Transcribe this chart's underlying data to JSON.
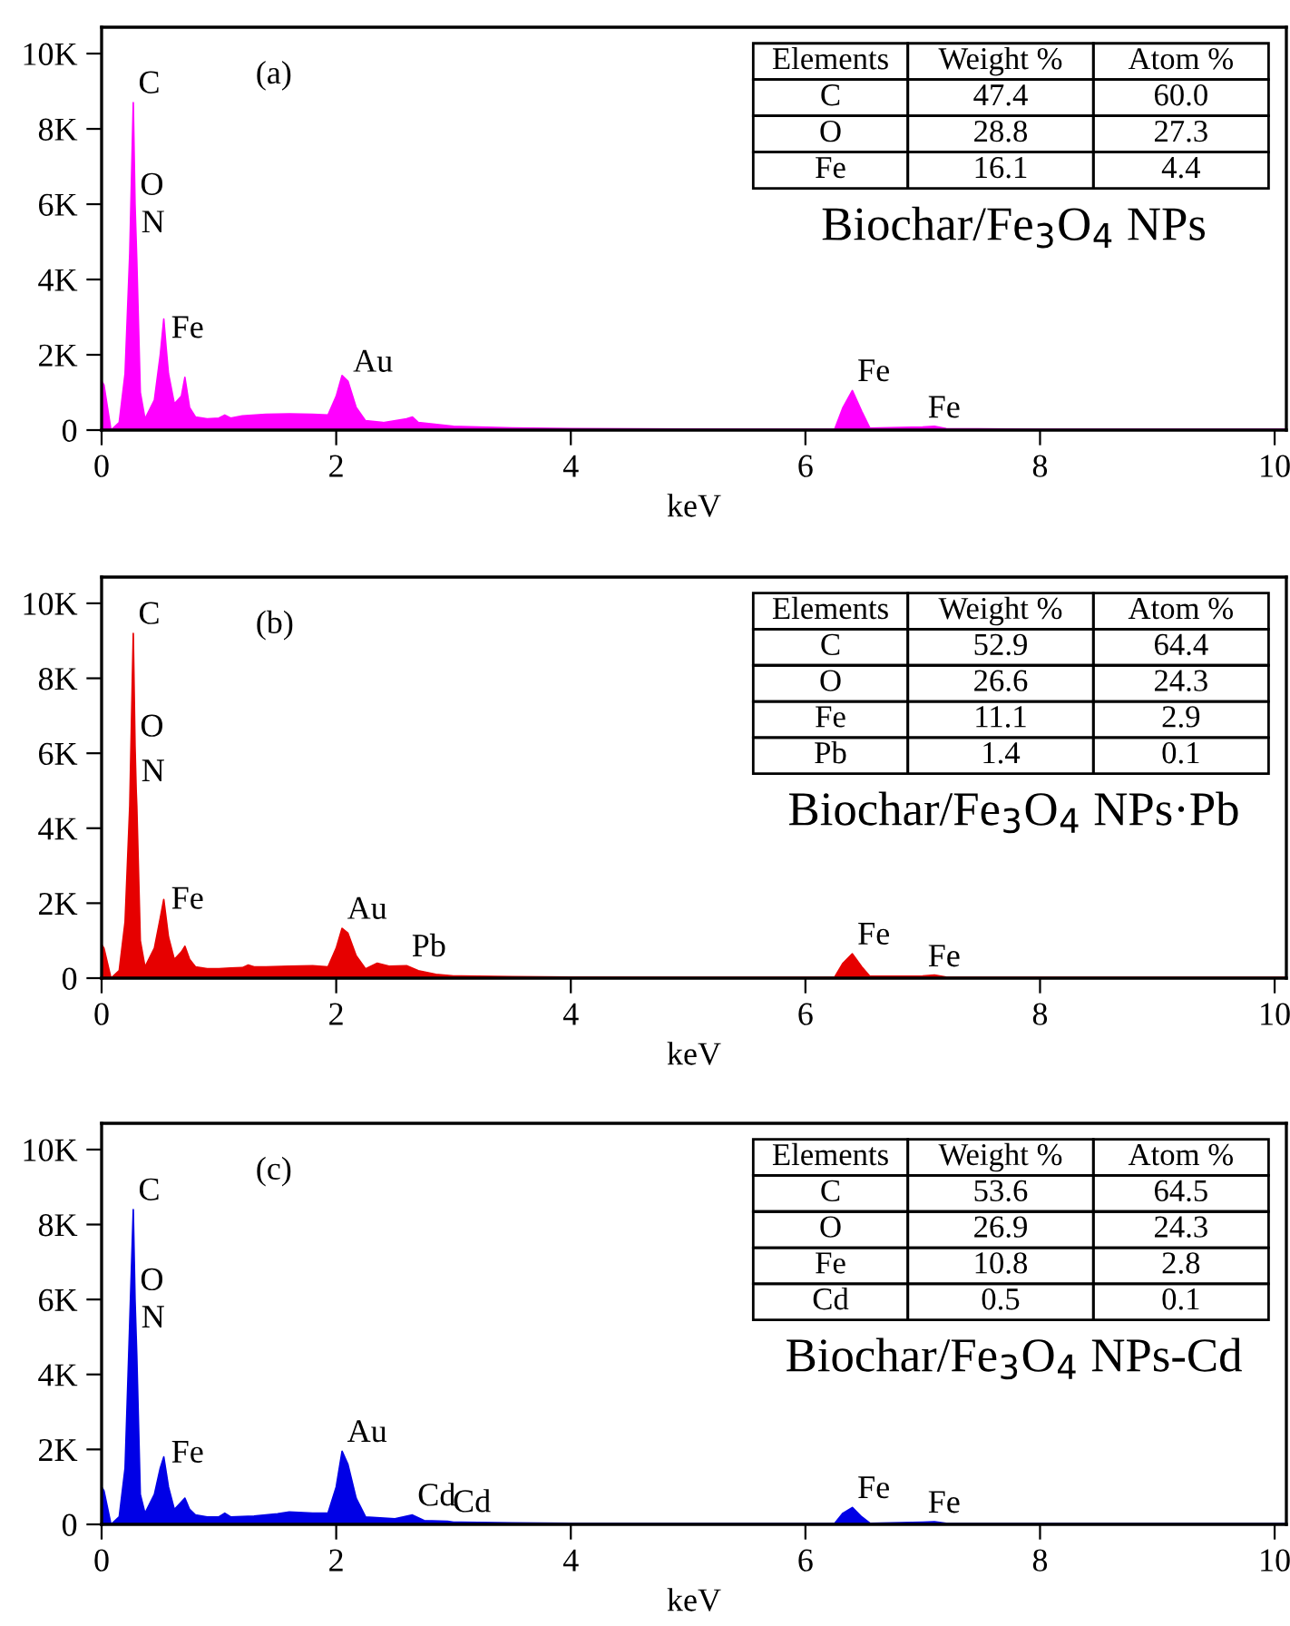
{
  "chart_data": [
    {
      "type": "area",
      "title": "Biochar/Fe$_{3}$O$_{4}$ NPs",
      "xlabel": "keV",
      "x": [
        0,
        0.02,
        0.08,
        0.15,
        0.2,
        0.24,
        0.27,
        0.285,
        0.295,
        0.3,
        0.33,
        0.37,
        0.45,
        0.5,
        0.53,
        0.55,
        0.57,
        0.62,
        0.68,
        0.71,
        0.75,
        0.8,
        0.9,
        1.0,
        1.05,
        1.1,
        1.2,
        1.4,
        1.6,
        1.8,
        1.93,
        2.0,
        2.05,
        2.1,
        2.17,
        2.25,
        2.4,
        2.6,
        2.65,
        2.7,
        3.0,
        3.5,
        4.0,
        5.0,
        6.0,
        6.25,
        6.32,
        6.4,
        6.48,
        6.55,
        7.0,
        7.1,
        7.2,
        8.0,
        10.0,
        10.1
      ],
      "series": [
        {
          "color": "#ff00ff",
          "values": [
            1300,
            1200,
            0,
            200,
            1500,
            4700,
            8700,
            6000,
            5000,
            4500,
            1000,
            300,
            800,
            2000,
            2950,
            2200,
            1500,
            700,
            900,
            1400,
            600,
            350,
            300,
            320,
            400,
            320,
            380,
            420,
            430,
            420,
            400,
            900,
            1450,
            1300,
            600,
            250,
            200,
            300,
            350,
            200,
            100,
            60,
            40,
            30,
            20,
            30,
            600,
            1050,
            500,
            50,
            80,
            100,
            40,
            20,
            20,
            20
          ]
        }
      ],
      "xlim": [
        0,
        10.1
      ],
      "xticks": [
        0,
        2,
        4,
        6,
        8,
        10
      ],
      "ylim": [
        0,
        10700
      ],
      "yticks": [
        0,
        {
          "value": 2000,
          "label": "2K"
        },
        {
          "value": 4000,
          "label": "4K"
        },
        {
          "value": 6000,
          "label": "6K"
        },
        {
          "value": 8000,
          "label": "8K"
        },
        {
          "value": 10000,
          "label": "10K"
        }
      ],
      "grid": false,
      "legend": false,
      "annotations": [
        "(a)",
        {
          "text": "C",
          "x": 0.27,
          "y": 8700
        },
        {
          "text": "O",
          "x": 0.285,
          "y": 6000
        },
        {
          "text": "N",
          "x": 0.295,
          "y": 5000
        },
        {
          "text": "Fe",
          "x": 0.55,
          "y": 2200
        },
        {
          "text": "Au",
          "x": 2.1,
          "y": 1300
        },
        {
          "text": "Fe",
          "x": 6.4,
          "y": 1050
        },
        {
          "text": "Fe",
          "x": 7.0,
          "y": 80
        },
        "Elements",
        "Weight %",
        "Atom %",
        "C",
        "47.4",
        "60.0",
        "O",
        "28.8",
        "27.3",
        "Fe",
        "16.1",
        "4.4"
      ]
    },
    {
      "type": "area",
      "title": "Biochar/Fe$_{3}$O$_{4}$ NPs·Pb",
      "xlabel": "keV",
      "x": [
        0,
        0.02,
        0.08,
        0.15,
        0.2,
        0.24,
        0.27,
        0.285,
        0.295,
        0.3,
        0.33,
        0.37,
        0.45,
        0.5,
        0.53,
        0.55,
        0.57,
        0.62,
        0.68,
        0.71,
        0.75,
        0.8,
        0.9,
        1.0,
        1.1,
        1.2,
        1.25,
        1.3,
        1.4,
        1.6,
        1.8,
        1.93,
        2.0,
        2.05,
        2.1,
        2.17,
        2.25,
        2.35,
        2.45,
        2.6,
        2.7,
        2.85,
        3.0,
        3.5,
        4.0,
        5.0,
        6.0,
        6.25,
        6.32,
        6.4,
        6.48,
        6.55,
        7.0,
        7.1,
        7.2,
        8.0,
        10.0,
        10.1
      ],
      "series": [
        {
          "color": "#e60000",
          "values": [
            900,
            800,
            0,
            200,
            1500,
            4600,
            9200,
            6200,
            5000,
            4600,
            1000,
            300,
            800,
            1600,
            2100,
            1600,
            1100,
            500,
            700,
            850,
            500,
            300,
            250,
            250,
            270,
            280,
            350,
            300,
            300,
            320,
            330,
            300,
            800,
            1330,
            1200,
            600,
            250,
            400,
            320,
            330,
            200,
            100,
            60,
            40,
            30,
            20,
            20,
            30,
            400,
            650,
            300,
            50,
            60,
            80,
            30,
            20,
            20,
            20
          ]
        }
      ],
      "xlim": [
        0,
        10.1
      ],
      "xticks": [
        0,
        2,
        4,
        6,
        8,
        10
      ],
      "ylim": [
        0,
        10700
      ],
      "yticks": [
        0,
        {
          "value": 2000,
          "label": "2K"
        },
        {
          "value": 4000,
          "label": "4K"
        },
        {
          "value": 6000,
          "label": "6K"
        },
        {
          "value": 8000,
          "label": "8K"
        },
        {
          "value": 10000,
          "label": "10K"
        }
      ],
      "grid": false,
      "legend": false,
      "annotations": [
        "(b)",
        {
          "text": "C",
          "x": 0.27,
          "y": 9200
        },
        {
          "text": "O",
          "x": 0.285,
          "y": 6200
        },
        {
          "text": "N",
          "x": 0.295,
          "y": 5000
        },
        {
          "text": "Fe",
          "x": 0.55,
          "y": 1600
        },
        {
          "text": "Au",
          "x": 2.05,
          "y": 1330
        },
        {
          "text": "Pb",
          "x": 2.6,
          "y": 330
        },
        {
          "text": "Fe",
          "x": 6.4,
          "y": 650
        },
        {
          "text": "Fe",
          "x": 7.0,
          "y": 60
        },
        "Elements",
        "Weight %",
        "Atom %",
        "C",
        "52.9",
        "64.4",
        "O",
        "26.6",
        "24.3",
        "Fe",
        "11.1",
        "2.9",
        "Pb",
        "1.4",
        "0.1"
      ]
    },
    {
      "type": "area",
      "title": "Biochar/Fe$_{3}$O$_{4}$ NPs-Cd",
      "xlabel": "keV",
      "x": [
        0,
        0.02,
        0.08,
        0.15,
        0.2,
        0.24,
        0.27,
        0.285,
        0.295,
        0.3,
        0.33,
        0.37,
        0.45,
        0.5,
        0.53,
        0.55,
        0.57,
        0.62,
        0.68,
        0.71,
        0.75,
        0.8,
        0.9,
        1.0,
        1.05,
        1.1,
        1.3,
        1.5,
        1.6,
        1.8,
        1.93,
        2.0,
        2.05,
        2.1,
        2.17,
        2.25,
        2.5,
        2.65,
        2.75,
        2.95,
        3.0,
        3.5,
        4.0,
        5.0,
        6.0,
        6.25,
        6.32,
        6.4,
        6.48,
        6.55,
        7.0,
        7.1,
        7.2,
        8.0,
        10.0,
        10.1
      ],
      "series": [
        {
          "color": "#0000e6",
          "values": [
            1000,
            900,
            0,
            200,
            1500,
            5400,
            8400,
            6000,
            5000,
            4500,
            800,
            300,
            800,
            1500,
            1800,
            1400,
            1000,
            400,
            600,
            700,
            400,
            250,
            200,
            200,
            300,
            200,
            220,
            280,
            330,
            300,
            300,
            1000,
            1950,
            1600,
            700,
            200,
            150,
            250,
            100,
            80,
            60,
            40,
            30,
            20,
            20,
            30,
            300,
            450,
            200,
            30,
            60,
            70,
            30,
            20,
            20,
            20
          ]
        }
      ],
      "xlim": [
        0,
        10.1
      ],
      "xticks": [
        0,
        2,
        4,
        6,
        8,
        10
      ],
      "ylim": [
        0,
        10700
      ],
      "yticks": [
        0,
        {
          "value": 2000,
          "label": "2K"
        },
        {
          "value": 4000,
          "label": "4K"
        },
        {
          "value": 6000,
          "label": "6K"
        },
        {
          "value": 8000,
          "label": "8K"
        },
        {
          "value": 10000,
          "label": "10K"
        }
      ],
      "grid": false,
      "legend": false,
      "annotations": [
        "(c)",
        {
          "text": "C",
          "x": 0.27,
          "y": 8400
        },
        {
          "text": "O",
          "x": 0.285,
          "y": 6000
        },
        {
          "text": "N",
          "x": 0.295,
          "y": 5000
        },
        {
          "text": "Fe",
          "x": 0.55,
          "y": 1400
        },
        {
          "text": "Au",
          "x": 2.05,
          "y": 1950
        },
        {
          "text": "Cd",
          "x": 2.65,
          "y": 250
        },
        {
          "text": "Cd",
          "x": 2.95,
          "y": 80
        },
        {
          "text": "Fe",
          "x": 6.4,
          "y": 450
        },
        {
          "text": "Fe",
          "x": 7.0,
          "y": 60
        },
        "Elements",
        "Weight %",
        "Atom %",
        "C",
        "53.6",
        "64.5",
        "O",
        "26.9",
        "24.3",
        "Fe",
        "10.8",
        "2.8",
        "Cd",
        "0.5",
        "0.1"
      ]
    }
  ]
}
